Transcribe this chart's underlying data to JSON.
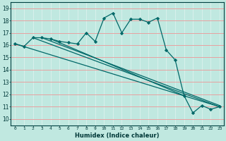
{
  "xlabel": "Humidex (Indice chaleur)",
  "ylabel": "",
  "xlim": [
    -0.5,
    23.5
  ],
  "ylim": [
    9.5,
    19.5
  ],
  "xticks": [
    0,
    1,
    2,
    3,
    4,
    5,
    6,
    7,
    8,
    9,
    10,
    11,
    12,
    13,
    14,
    15,
    16,
    17,
    18,
    19,
    20,
    21,
    22,
    23
  ],
  "yticks": [
    10,
    11,
    12,
    13,
    14,
    15,
    16,
    17,
    18,
    19
  ],
  "bg_color": "#c0e8e0",
  "grid_color_h": "#e8a0a0",
  "grid_color_v": "#d8f0ec",
  "line_color": "#006868",
  "jagged_x": [
    0,
    1,
    2,
    3,
    4,
    5,
    6,
    7,
    8,
    9,
    10,
    11,
    12,
    13,
    14,
    15,
    16,
    17,
    18,
    19,
    20,
    21,
    22,
    23
  ],
  "jagged_y": [
    16.1,
    15.9,
    16.6,
    16.6,
    16.5,
    16.3,
    16.2,
    16.1,
    17.0,
    16.3,
    18.2,
    18.6,
    17.0,
    18.1,
    18.1,
    17.85,
    18.2,
    15.6,
    14.8,
    11.9,
    10.5,
    11.1,
    10.8,
    11.0
  ],
  "line1_x": [
    0,
    23
  ],
  "line1_y": [
    16.1,
    11.0
  ],
  "line2_x": [
    2,
    23
  ],
  "line2_y": [
    16.6,
    11.0
  ],
  "line3_x": [
    3,
    23
  ],
  "line3_y": [
    16.6,
    11.1
  ],
  "line4_x": [
    4,
    19
  ],
  "line4_y": [
    16.5,
    11.9
  ]
}
